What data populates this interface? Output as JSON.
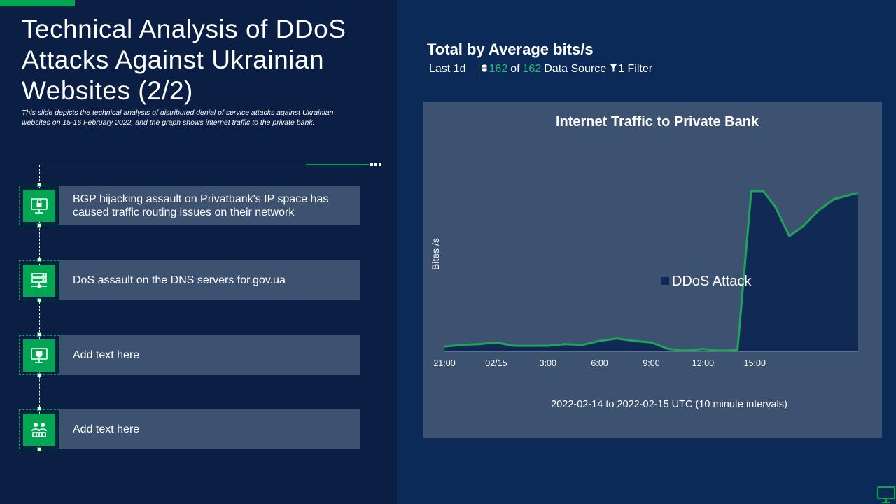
{
  "slide": {
    "title": "Technical Analysis of DDoS Attacks Against Ukrainian Websites (2/2)",
    "subtitle": "This slide depicts the technical analysis of distributed denial of service attacks against Ukrainian websites on 15-16 February 2022, and the graph shows internet traffic to the private bank."
  },
  "steps": [
    {
      "text": "BGP hijacking assault on Privatbank's IP space has caused traffic routing issues on their network",
      "icon": "computer-lock-icon"
    },
    {
      "text": "DoS assault on the DNS servers for.gov.ua",
      "icon": "server-network-icon"
    },
    {
      "text": "Add text here",
      "icon": "monitor-shield-icon"
    },
    {
      "text": "Add text here",
      "icon": "people-network-icon"
    }
  ],
  "dashboard": {
    "header": "Total by Average bits/s",
    "range": "Last 1d",
    "source_count": "162",
    "of_text": "of",
    "source_total": "162",
    "source_label": "Data Source",
    "filter_label": "1 Filter"
  },
  "colors": {
    "background": "#0b1f44",
    "panel": "#0c2a58",
    "card": "#3d5270",
    "accent": "#00a651",
    "line": "#1ea55a",
    "area": "#102a55"
  },
  "chart_data": {
    "type": "area",
    "title": "Internet Traffic to Private Bank",
    "xlabel": "2022-02-14 to 2022-02-15 UTC (10 minute intervals)",
    "ylabel": "Bites /s",
    "x_ticks": [
      "21:00",
      "02/15",
      "3:00",
      "6:00",
      "9:00",
      "12:00",
      "15:00"
    ],
    "x_tick_hours": [
      0,
      3,
      6,
      9,
      12,
      15,
      18
    ],
    "x_range": [
      0,
      24
    ],
    "y_range": [
      0,
      100
    ],
    "grid": false,
    "legend_position": "center-right",
    "series": [
      {
        "name": "DDoS Attack",
        "x": [
          0,
          1,
          2,
          3,
          4,
          5,
          6,
          7,
          8,
          9,
          10,
          11,
          12,
          13,
          14,
          15,
          15.8,
          16.3,
          17,
          17.8,
          18.5,
          19.2,
          20,
          20.8,
          21.7,
          22.6,
          24
        ],
        "values": [
          3,
          4,
          4.5,
          5.5,
          3.5,
          3.5,
          3.5,
          4.5,
          4,
          6.5,
          8,
          6.5,
          5.5,
          1.5,
          0.5,
          1.5,
          0.5,
          0.5,
          1,
          100,
          100,
          90,
          72,
          78,
          88,
          95,
          99
        ]
      }
    ]
  }
}
